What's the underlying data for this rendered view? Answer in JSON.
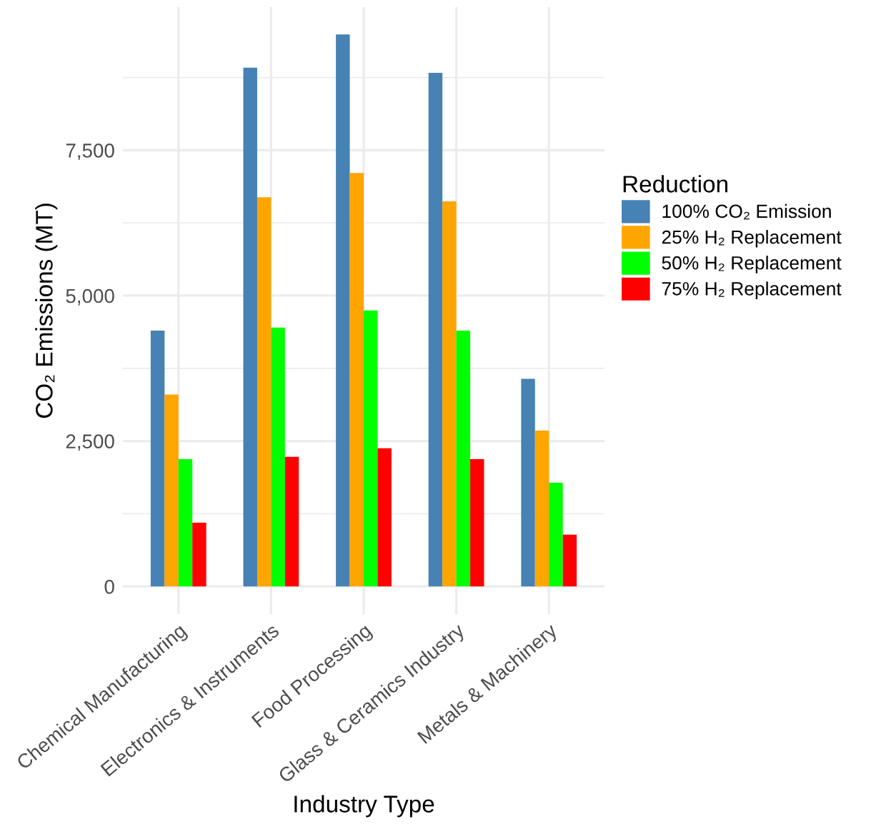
{
  "chart_data": {
    "type": "bar",
    "xlabel": "Industry Type",
    "ylabel": "CO₂ Emissions (MT)",
    "legend_title": "Reduction",
    "legend": "right",
    "categories": [
      "Chemical Manufacturing",
      "Electronics & Instruments",
      "Food Processing",
      "Glass & Ceramics Industry",
      "Metals & Machinery"
    ],
    "series": [
      {
        "name": "100% CO₂ Emission",
        "color": "#4682b4",
        "values": [
          4400,
          8920,
          9490,
          8830,
          3570
        ]
      },
      {
        "name": "25% H₂ Replacement",
        "color": "#ffa500",
        "values": [
          3300,
          6690,
          7110,
          6620,
          2680
        ]
      },
      {
        "name": "50% H₂ Replacement",
        "color": "#00ff00",
        "values": [
          2190,
          4450,
          4745,
          4400,
          1785
        ]
      },
      {
        "name": "75% H₂ Replacement",
        "color": "#ff0000",
        "values": [
          1095,
          2230,
          2375,
          2190,
          890
        ]
      }
    ],
    "ylim": [
      -475,
      9960
    ],
    "yticks": [
      {
        "value": 0,
        "label": "0"
      },
      {
        "value": 2500,
        "label": "2,500"
      },
      {
        "value": 5000,
        "label": "5,000"
      },
      {
        "value": 7500,
        "label": "7,500"
      }
    ],
    "grid": true
  }
}
